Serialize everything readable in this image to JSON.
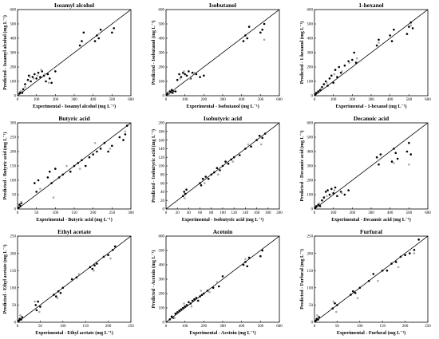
{
  "chart_data": [
    {
      "type": "scatter",
      "title": "Isoamyl alcohol",
      "xlabel": "Experimental - Isoamyl alcohol (mg L⁻¹)",
      "ylabel": "Predicted - Isoamyl alcohol (mg L⁻¹)",
      "xlim": [
        0,
        600
      ],
      "ylim": [
        0,
        600
      ],
      "xticks": [
        0,
        100,
        200,
        300,
        400,
        500,
        600
      ],
      "yticks": [
        0,
        100,
        200,
        300,
        400,
        500,
        600
      ],
      "series": [
        {
          "color": "#000000",
          "x": [
            10,
            15,
            20,
            25,
            30,
            40,
            55,
            60,
            70,
            80,
            90,
            100,
            110,
            120,
            130,
            140,
            150,
            160,
            170,
            180,
            200,
            330,
            340,
            350,
            410,
            420,
            430,
            440,
            500,
            510
          ],
          "y": [
            15,
            25,
            30,
            20,
            45,
            80,
            110,
            140,
            100,
            130,
            150,
            120,
            160,
            130,
            170,
            140,
            100,
            150,
            120,
            90,
            170,
            350,
            380,
            440,
            380,
            420,
            400,
            460,
            440,
            470
          ]
        },
        {
          "color": "#aaaaaa",
          "x": [
            20,
            40,
            65,
            85,
            105,
            125,
            145,
            165,
            190,
            430,
            520
          ],
          "y": [
            30,
            60,
            130,
            120,
            140,
            180,
            150,
            90,
            190,
            430,
            520
          ]
        }
      ],
      "fit_line": [
        [
          0,
          0
        ],
        [
          600,
          600
        ]
      ]
    },
    {
      "type": "scatter",
      "title": "Isobutanol",
      "xlabel": "Experimental - Isobutanol (mg L⁻¹)",
      "ylabel": "Predicted - Isobutanol (mg L⁻¹)",
      "xlim": [
        0,
        600
      ],
      "ylim": [
        0,
        600
      ],
      "xticks": [
        0,
        100,
        200,
        300,
        400,
        500,
        600
      ],
      "yticks": [
        0,
        100,
        200,
        300,
        400,
        500,
        600
      ],
      "series": [
        {
          "color": "#000000",
          "x": [
            5,
            10,
            15,
            20,
            25,
            30,
            35,
            40,
            50,
            60,
            70,
            80,
            90,
            100,
            110,
            120,
            130,
            140,
            160,
            180,
            200,
            410,
            420,
            430,
            440,
            500,
            510,
            520
          ],
          "y": [
            10,
            20,
            15,
            30,
            25,
            40,
            20,
            35,
            30,
            110,
            150,
            130,
            160,
            150,
            140,
            170,
            120,
            160,
            150,
            130,
            140,
            380,
            420,
            400,
            480,
            440,
            460,
            500
          ]
        },
        {
          "color": "#aaaaaa",
          "x": [
            15,
            45,
            75,
            95,
            125,
            150,
            520
          ],
          "y": [
            20,
            40,
            120,
            170,
            120,
            160,
            390
          ]
        }
      ],
      "fit_line": [
        [
          0,
          0
        ],
        [
          600,
          600
        ]
      ]
    },
    {
      "type": "scatter",
      "title": "1-hexanol",
      "xlabel": "Experimental - 1-hexanol (mg L⁻¹)",
      "ylabel": "Predicted - 1-hexanol (mg L⁻¹)",
      "xlim": [
        0,
        600
      ],
      "ylim": [
        0,
        600
      ],
      "xticks": [
        0,
        100,
        200,
        300,
        400,
        500,
        600
      ],
      "yticks": [
        0,
        100,
        200,
        300,
        400,
        500,
        600
      ],
      "series": [
        {
          "color": "#000000",
          "x": [
            5,
            10,
            20,
            30,
            40,
            50,
            60,
            70,
            80,
            90,
            100,
            110,
            120,
            130,
            140,
            160,
            180,
            200,
            210,
            220,
            330,
            340,
            400,
            410,
            420,
            490,
            500,
            510,
            520
          ],
          "y": [
            10,
            20,
            30,
            40,
            60,
            80,
            100,
            70,
            120,
            140,
            90,
            180,
            130,
            200,
            160,
            210,
            240,
            250,
            300,
            230,
            350,
            390,
            420,
            380,
            460,
            430,
            480,
            510,
            470
          ]
        },
        {
          "color": "#aaaaaa",
          "x": [
            35,
            65,
            105,
            145,
            185,
            225,
            340,
            510
          ],
          "y": [
            50,
            90,
            150,
            170,
            230,
            260,
            370,
            490
          ]
        }
      ],
      "fit_line": [
        [
          0,
          0
        ],
        [
          600,
          600
        ]
      ]
    },
    {
      "type": "scatter",
      "title": "Butyric acid",
      "xlabel": "Experimental - Butyric acid (mg L⁻¹)",
      "ylabel": "Predicted - Butyric acid (mg L⁻¹)",
      "xlim": [
        0,
        300
      ],
      "ylim": [
        0,
        300
      ],
      "xticks": [
        0,
        50,
        100,
        150,
        200,
        250,
        300
      ],
      "yticks": [
        0,
        50,
        100,
        150,
        200,
        250,
        300
      ],
      "series": [
        {
          "color": "#000000",
          "x": [
            3,
            5,
            8,
            10,
            45,
            50,
            55,
            80,
            85,
            90,
            100,
            110,
            120,
            140,
            150,
            160,
            170,
            180,
            190,
            200,
            210,
            220,
            230,
            240,
            250,
            270,
            280,
            285,
            290
          ],
          "y": [
            5,
            15,
            10,
            20,
            90,
            60,
            100,
            110,
            130,
            90,
            140,
            110,
            120,
            130,
            150,
            160,
            170,
            150,
            180,
            190,
            200,
            210,
            230,
            200,
            220,
            250,
            240,
            260,
            290
          ]
        },
        {
          "color": "#aaaaaa",
          "x": [
            10,
            60,
            95,
            130,
            165,
            205,
            245,
            285
          ],
          "y": [
            25,
            70,
            40,
            150,
            140,
            230,
            210,
            270
          ]
        }
      ],
      "fit_line": [
        [
          0,
          0
        ],
        [
          300,
          300
        ]
      ]
    },
    {
      "type": "scatter",
      "title": "Isobutyric acid",
      "xlabel": "Experimental - Isobutyric acid (mg L⁻¹)",
      "ylabel": "Predicted - Isobutyric acid (mg L⁻¹)",
      "xlim": [
        0,
        200
      ],
      "ylim": [
        0,
        200
      ],
      "xticks": [
        0,
        20,
        40,
        60,
        80,
        100,
        120,
        140,
        160,
        180,
        200
      ],
      "yticks": [
        0,
        20,
        40,
        60,
        80,
        100,
        120,
        140,
        160,
        180,
        200
      ],
      "series": [
        {
          "color": "#000000",
          "x": [
            30,
            32,
            34,
            36,
            60,
            62,
            65,
            70,
            75,
            80,
            85,
            90,
            95,
            100,
            105,
            110,
            115,
            120,
            130,
            140,
            150,
            160,
            165,
            170,
            175
          ],
          "y": [
            30,
            40,
            35,
            45,
            60,
            55,
            70,
            75,
            70,
            80,
            85,
            95,
            90,
            100,
            110,
            105,
            115,
            120,
            125,
            140,
            145,
            160,
            170,
            165,
            175
          ]
        },
        {
          "color": "#aaaaaa",
          "x": [
            33,
            68,
            92,
            118,
            145,
            168
          ],
          "y": [
            25,
            60,
            80,
            110,
            150,
            150
          ]
        }
      ],
      "fit_line": [
        [
          0,
          0
        ],
        [
          200,
          200
        ]
      ]
    },
    {
      "type": "scatter",
      "title": "Decanoic acid",
      "xlabel": "Experimental - Decanoic acid (mg L⁻¹)",
      "ylabel": "Predicted - Decanoic acid (mg L⁻¹)",
      "xlim": [
        0,
        600
      ],
      "ylim": [
        0,
        600
      ],
      "xticks": [
        0,
        100,
        200,
        300,
        400,
        500,
        600
      ],
      "yticks": [
        0,
        100,
        200,
        300,
        400,
        500,
        600
      ],
      "series": [
        {
          "color": "#000000",
          "x": [
            5,
            10,
            20,
            30,
            40,
            50,
            60,
            70,
            80,
            90,
            100,
            110,
            120,
            140,
            160,
            180,
            330,
            340,
            350,
            410,
            420,
            430,
            440,
            490,
            500,
            510
          ],
          "y": [
            10,
            20,
            30,
            20,
            60,
            80,
            120,
            130,
            100,
            140,
            110,
            150,
            90,
            120,
            100,
            130,
            360,
            310,
            380,
            330,
            420,
            390,
            350,
            400,
            460,
            380
          ]
        },
        {
          "color": "#aaaaaa",
          "x": [
            25,
            65,
            105,
            145,
            340,
            420,
            500
          ],
          "y": [
            40,
            90,
            130,
            110,
            340,
            320,
            310
          ]
        }
      ],
      "fit_line": [
        [
          0,
          0
        ],
        [
          600,
          600
        ]
      ]
    },
    {
      "type": "scatter",
      "title": "Ethyl acetate",
      "xlabel": "Experimental - Ethyl acetate (mg L⁻¹)",
      "ylabel": "Predicted - Ethyl acetate (mg L⁻¹)",
      "xlim": [
        0,
        250
      ],
      "ylim": [
        0,
        250
      ],
      "xticks": [
        0,
        50,
        100,
        150,
        200,
        250
      ],
      "yticks": [
        0,
        50,
        100,
        150,
        200,
        250
      ],
      "series": [
        {
          "color": "#000000",
          "x": [
            3,
            5,
            8,
            10,
            40,
            42,
            45,
            50,
            80,
            85,
            90,
            95,
            100,
            120,
            130,
            160,
            165,
            170,
            175,
            190,
            200,
            210,
            215
          ],
          "y": [
            5,
            10,
            8,
            15,
            50,
            35,
            60,
            45,
            80,
            75,
            90,
            85,
            100,
            125,
            130,
            160,
            155,
            165,
            170,
            190,
            195,
            210,
            220
          ]
        },
        {
          "color": "#aaaaaa",
          "x": [
            6,
            38,
            48,
            88,
            135,
            168,
            205
          ],
          "y": [
            20,
            60,
            30,
            70,
            140,
            150,
            185
          ]
        }
      ],
      "fit_line": [
        [
          0,
          0
        ],
        [
          250,
          250
        ]
      ]
    },
    {
      "type": "scatter",
      "title": "Acetoin",
      "xlabel": "Experimental - Acetoin (mg L⁻¹)",
      "ylabel": "Predicted - Acetoin (mg L⁻¹)",
      "xlim": [
        0,
        600
      ],
      "ylim": [
        0,
        600
      ],
      "xticks": [
        0,
        100,
        200,
        300,
        400,
        500,
        600
      ],
      "yticks": [
        0,
        100,
        200,
        300,
        400,
        500,
        600
      ],
      "series": [
        {
          "color": "#000000",
          "x": [
            20,
            30,
            40,
            50,
            60,
            70,
            80,
            90,
            100,
            110,
            120,
            130,
            140,
            150,
            160,
            170,
            180,
            190,
            200,
            220,
            250,
            280,
            300,
            410,
            420,
            430,
            440,
            500,
            510
          ],
          "y": [
            20,
            40,
            30,
            60,
            70,
            80,
            90,
            100,
            110,
            120,
            140,
            130,
            150,
            160,
            170,
            150,
            180,
            190,
            200,
            220,
            240,
            250,
            320,
            400,
            420,
            390,
            450,
            460,
            500
          ]
        },
        {
          "color": "#aaaaaa",
          "x": [
            45,
            95,
            135,
            185,
            230,
            270,
            420
          ],
          "y": [
            30,
            130,
            110,
            220,
            210,
            280,
            440
          ]
        }
      ],
      "fit_line": [
        [
          0,
          0
        ],
        [
          600,
          600
        ]
      ]
    },
    {
      "type": "scatter",
      "title": "Furfural",
      "xlabel": "Experimental - Furfural (mg L⁻¹)",
      "ylabel": "Predicted - Furfural (mg L⁻¹)",
      "xlim": [
        0,
        250
      ],
      "ylim": [
        0,
        250
      ],
      "xticks": [
        0,
        50,
        100,
        150,
        200,
        250
      ],
      "yticks": [
        0,
        50,
        100,
        150,
        200,
        250
      ],
      "series": [
        {
          "color": "#000000",
          "x": [
            3,
            5,
            8,
            10,
            40,
            45,
            50,
            80,
            85,
            90,
            100,
            120,
            130,
            150,
            160,
            170,
            180,
            190,
            200,
            210,
            220,
            230
          ],
          "y": [
            5,
            10,
            8,
            15,
            40,
            55,
            50,
            80,
            90,
            85,
            100,
            120,
            140,
            150,
            150,
            170,
            175,
            190,
            195,
            200,
            210,
            240
          ]
        },
        {
          "color": "#aaaaaa",
          "x": [
            6,
            42,
            48,
            95,
            140,
            185,
            220
          ],
          "y": [
            20,
            60,
            30,
            70,
            120,
            160,
            200
          ]
        }
      ],
      "fit_line": [
        [
          0,
          0
        ],
        [
          250,
          250
        ]
      ]
    }
  ]
}
